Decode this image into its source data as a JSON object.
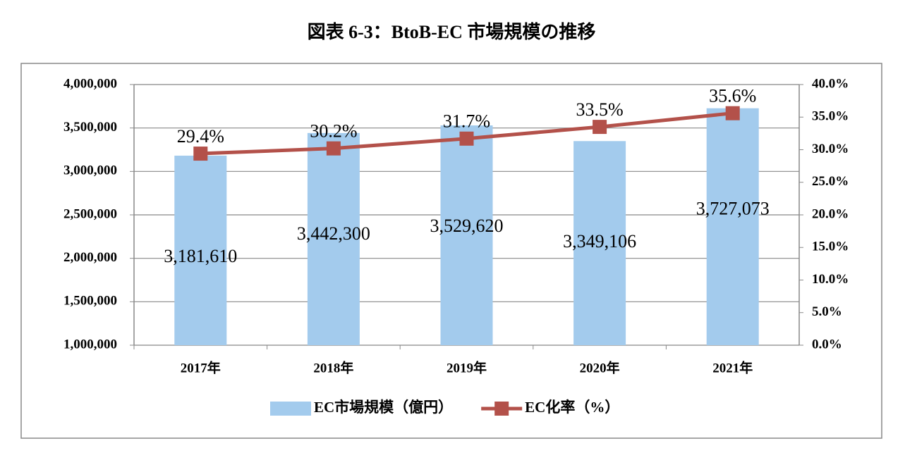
{
  "chart_data": {
    "type": "bar-line",
    "title": "図表 6-3：BtoB-EC 市場規模の推移",
    "categories": [
      "2017年",
      "2018年",
      "2019年",
      "2020年",
      "2021年"
    ],
    "series": [
      {
        "name": "EC市場規模（億円）",
        "type": "bar",
        "color": "#a3cbed",
        "values": [
          3181610,
          3442300,
          3529620,
          3349106,
          3727073
        ],
        "value_labels": [
          "3,181,610",
          "3,442,300",
          "3,529,620",
          "3,349,106",
          "3,727,073"
        ]
      },
      {
        "name": "EC化率（%）",
        "type": "line",
        "axis": "y2",
        "color": "#b3514a",
        "values": [
          29.4,
          30.2,
          31.7,
          33.5,
          35.6
        ],
        "value_labels": [
          "29.4%",
          "30.2%",
          "31.7%",
          "33.5%",
          "35.6%"
        ]
      }
    ],
    "ylim": [
      1000000,
      4000000
    ],
    "yticks": [
      {
        "value": 1000000,
        "label": "1,000,000"
      },
      {
        "value": 1500000,
        "label": "1,500,000"
      },
      {
        "value": 2000000,
        "label": "2,000,000"
      },
      {
        "value": 2500000,
        "label": "2,500,000"
      },
      {
        "value": 3000000,
        "label": "3,000,000"
      },
      {
        "value": 3500000,
        "label": "3,500,000"
      },
      {
        "value": 4000000,
        "label": "4,000,000"
      }
    ],
    "y2lim": [
      0,
      40
    ],
    "y2ticks": [
      {
        "value": 0,
        "label": "0.0%"
      },
      {
        "value": 5,
        "label": "5.0%"
      },
      {
        "value": 10,
        "label": "10.0%"
      },
      {
        "value": 15,
        "label": "15.0%"
      },
      {
        "value": 20,
        "label": "20.0%"
      },
      {
        "value": 25,
        "label": "25.0%"
      },
      {
        "value": 30,
        "label": "30.0%"
      },
      {
        "value": 35,
        "label": "35.0%"
      },
      {
        "value": 40,
        "label": "40.0%"
      }
    ],
    "grid": true,
    "legend": "bottom"
  }
}
